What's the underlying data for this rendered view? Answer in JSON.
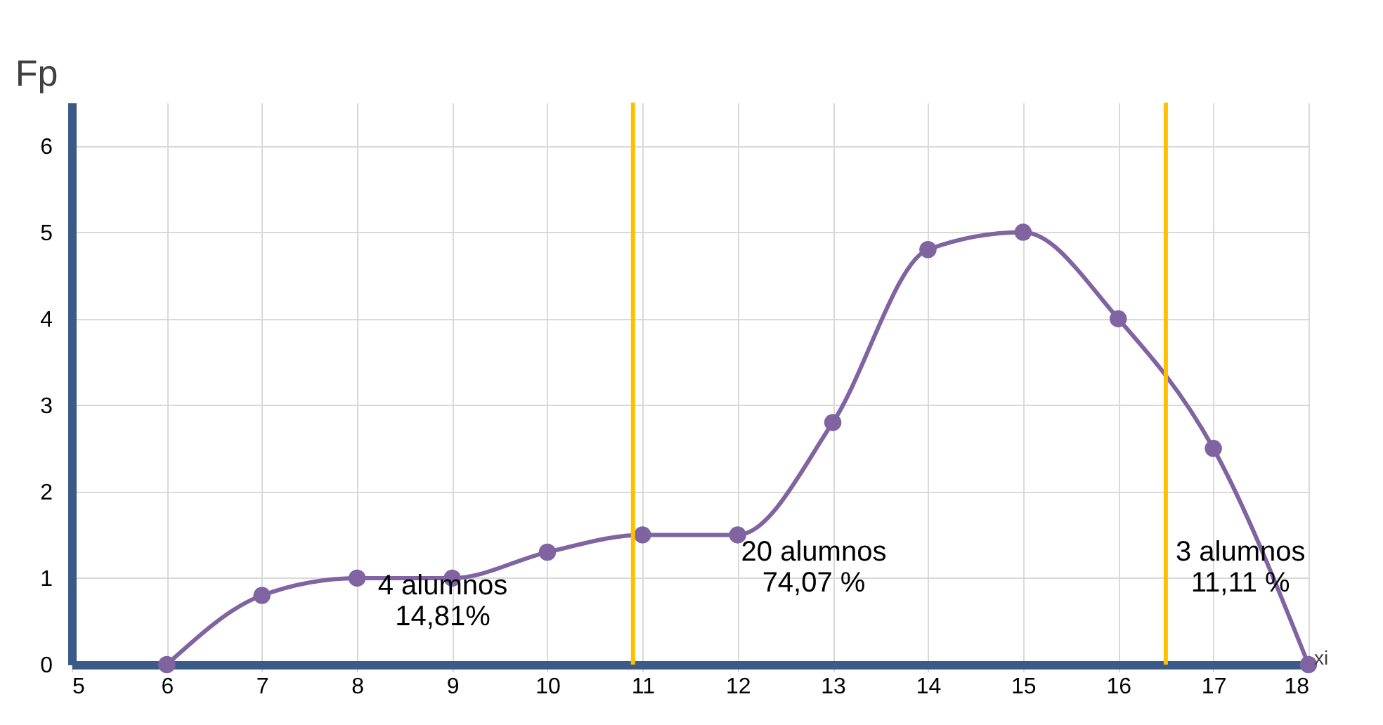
{
  "chart_data": {
    "type": "line",
    "xlabel": "xi",
    "ylabel": "Fp",
    "x": [
      6,
      7,
      8,
      9,
      10,
      11,
      12,
      13,
      14,
      15,
      16,
      17,
      18
    ],
    "series": [
      {
        "color": "#8064a2",
        "values": [
          0,
          0.8,
          1.0,
          1.0,
          1.3,
          1.5,
          1.5,
          2.8,
          4.8,
          5.0,
          4.0,
          2.5,
          0
        ]
      }
    ],
    "xlim": [
      5,
      18
    ],
    "xticks": [
      5,
      6,
      7,
      8,
      9,
      10,
      11,
      12,
      13,
      14,
      15,
      16,
      17,
      18
    ],
    "ylim": [
      0,
      6.5
    ],
    "yticks": [
      0,
      1,
      2,
      3,
      4,
      5,
      6
    ],
    "grid": true,
    "marker": "circle",
    "line_style": "solid",
    "ref_lines": [
      {
        "axis": "x",
        "value": 10.9,
        "color": "#ffc000"
      },
      {
        "axis": "x",
        "value": 16.5,
        "color": "#ffc000"
      }
    ],
    "annotations": [
      "4 alumnos\n14,81%",
      "20 alumnos\n74,07 %",
      "3 alumnos\n11,11 %"
    ]
  }
}
